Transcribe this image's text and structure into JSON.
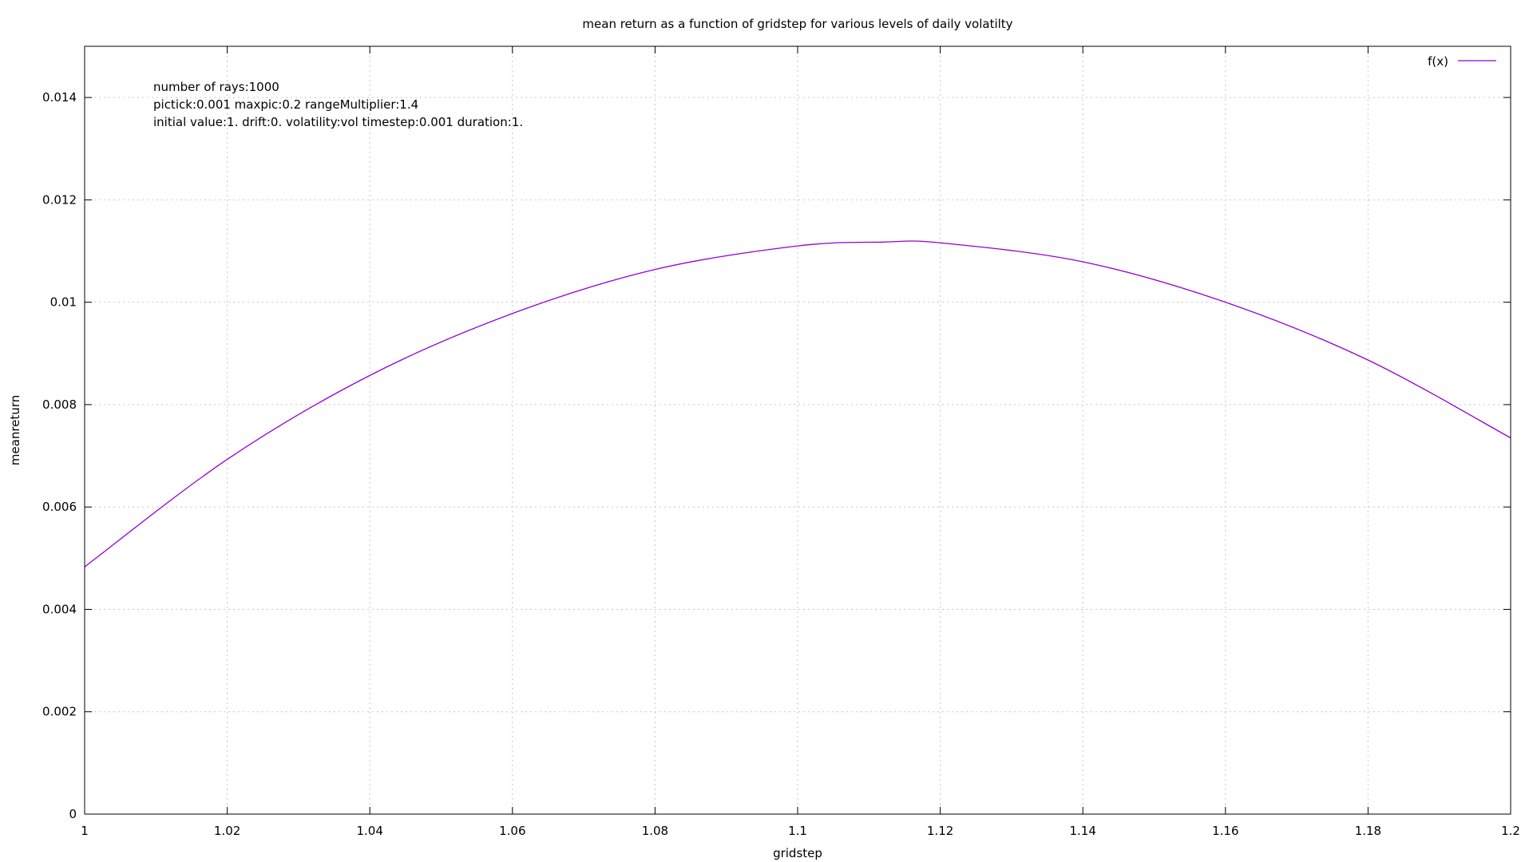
{
  "chart_data": {
    "type": "line",
    "title": "mean return as a function of gridstep for various levels of daily volatilty",
    "xlabel": "gridstep",
    "ylabel": "meanreturn",
    "xlim": [
      1,
      1.2
    ],
    "ylim": [
      0,
      0.015
    ],
    "grid": true,
    "legend_position": "top-right",
    "x_ticks": [
      "1",
      "1.02",
      "1.04",
      "1.06",
      "1.08",
      "1.1",
      "1.12",
      "1.14",
      "1.16",
      "1.18",
      "1.2"
    ],
    "y_ticks": [
      "0",
      "0.002",
      "0.004",
      "0.006",
      "0.008",
      "0.01",
      "0.012",
      "0.014"
    ],
    "annotations": [
      "number of rays:1000",
      "pictick:0.001 maxpic:0.2 rangeMultiplier:1.4",
      "initial value:1. drift:0. volatility:vol timestep:0.001 duration:1."
    ],
    "series": [
      {
        "name": "f(x)",
        "color": "#9400d3",
        "x": [
          1.0,
          1.02,
          1.04,
          1.06,
          1.08,
          1.1,
          1.112,
          1.12,
          1.14,
          1.16,
          1.18,
          1.2
        ],
        "y": [
          0.00483,
          0.00693,
          0.00857,
          0.00978,
          0.01064,
          0.0111,
          0.011175,
          0.01116,
          0.01079,
          0.01,
          0.00887,
          0.00735
        ]
      }
    ]
  }
}
